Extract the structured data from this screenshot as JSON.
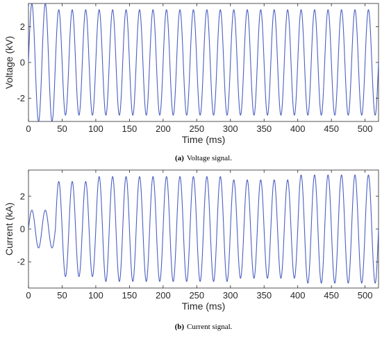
{
  "chart_data": [
    {
      "type": "line",
      "title": "",
      "caption_tag": "(a)",
      "caption_text": "Voltage signal.",
      "xlabel": "Time (ms)",
      "ylabel": "Voltage (kV)",
      "xlim": [
        0,
        520
      ],
      "ylim": [
        -3.3,
        3.3
      ],
      "xticks": [
        0,
        50,
        100,
        150,
        200,
        250,
        300,
        350,
        400,
        450,
        500
      ],
      "yticks": [
        2,
        0,
        -2
      ],
      "grid": false,
      "line_color": "#4a5fc1",
      "frequency_hz": 50,
      "series": [
        {
          "segments": [
            {
              "t_start": 0,
              "t_end": 40,
              "amplitude": 3.3
            },
            {
              "t_start": 40,
              "t_end": 520,
              "amplitude": 2.95
            }
          ]
        }
      ]
    },
    {
      "type": "line",
      "title": "",
      "caption_tag": "(b)",
      "caption_text": "Current signal.",
      "xlabel": "Time (ms)",
      "ylabel": "Current (kA)",
      "xlim": [
        0,
        520
      ],
      "ylim": [
        -3.6,
        3.6
      ],
      "xticks": [
        0,
        50,
        100,
        150,
        200,
        250,
        300,
        350,
        400,
        450,
        500
      ],
      "yticks": [
        2,
        0,
        -2
      ],
      "grid": false,
      "line_color": "#4a5fc1",
      "frequency_hz": 50,
      "series": [
        {
          "segments": [
            {
              "t_start": 0,
              "t_end": 40,
              "amplitude": 1.15
            },
            {
              "t_start": 40,
              "t_end": 100,
              "amplitude": 2.9
            },
            {
              "t_start": 100,
              "t_end": 300,
              "amplitude": 3.2
            },
            {
              "t_start": 300,
              "t_end": 400,
              "amplitude": 3.0
            },
            {
              "t_start": 400,
              "t_end": 520,
              "amplitude": 3.3
            }
          ]
        }
      ]
    }
  ]
}
